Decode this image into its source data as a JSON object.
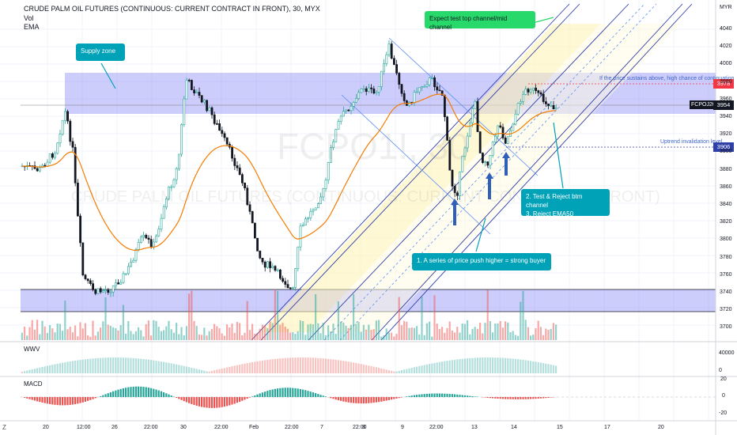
{
  "header": {
    "title": "CRUDE PALM OIL FUTURES (CONTINUOUS: CURRENT CONTRACT IN FRONT), 30, MYX",
    "vol_label": "Vol",
    "ema_label": "EMA"
  },
  "watermark": {
    "symbol": "FCPO1!, 30",
    "name": "CRUDE PALM OIL FUTURES (CONTINUOUS: CURRENT CONTRACT IN FRONT)"
  },
  "price_axis": {
    "currency": "MYR",
    "ticks": [
      "4040",
      "4020",
      "4000",
      "3980",
      "3960",
      "3940",
      "3920",
      "3900",
      "3880",
      "3860",
      "3840",
      "3820",
      "3800",
      "3780",
      "3760",
      "3740",
      "3720",
      "3700"
    ]
  },
  "price_tags": {
    "resistance": "3978",
    "last": "3954",
    "symbol": "FCPOJ2023",
    "invalidation": "3906"
  },
  "annotations": {
    "supply_zone": "Supply zone",
    "channel_target": "Expect test top channel/mid channel",
    "test_reject": "2. Test & Reject btm channel\n3. Reject EMA50",
    "strong_buyer": "1. A series of price push higher = strong buyer",
    "sustain_note": "If the price sustains above, high chance of continuation",
    "invalidation_note": "Uptrend invalidation level"
  },
  "wwv": {
    "label": "WWV",
    "ticks": [
      "40000",
      "0"
    ]
  },
  "macd": {
    "label": "MACD",
    "ticks": [
      "20",
      "0",
      "-20"
    ]
  },
  "time_axis": {
    "labels": [
      "20",
      "12:00",
      "26",
      "22:00",
      "30",
      "22:00",
      "Feb",
      "22:00",
      "7",
      "22:00",
      "8",
      "9",
      "22:00",
      "13",
      "14",
      "15",
      "17",
      "20"
    ]
  },
  "colors": {
    "up": "#26a69a",
    "down": "#131722",
    "ema": "#f57c00",
    "zone": "#6f6ff5",
    "channel": "#2f3fa8",
    "teal_callout": "#00a2b8",
    "green_callout": "#27d86a",
    "blue_callout": "#2196f3"
  }
}
